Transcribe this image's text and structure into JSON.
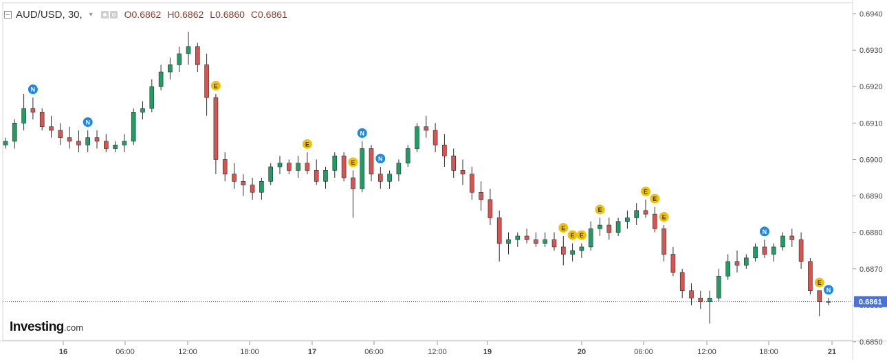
{
  "header": {
    "symbol": "AUD/USD, 30,",
    "open": "O0.6862",
    "high": "H0.6862",
    "low": "L0.6860",
    "close": "C0.6861"
  },
  "logo": {
    "brand": "Investing",
    "suffix": ".com"
  },
  "price_scale": [
    "0.6940",
    "0.6930",
    "0.6920",
    "0.6910",
    "0.6900",
    "0.6890",
    "0.6880",
    "0.6870",
    "0.6860",
    "0.6850"
  ],
  "time_axis": [
    {
      "label": "16",
      "bold": true
    },
    {
      "label": "06:00",
      "bold": false
    },
    {
      "label": "12:00",
      "bold": false
    },
    {
      "label": "18:00",
      "bold": false
    },
    {
      "label": "17",
      "bold": true
    },
    {
      "label": "06:00",
      "bold": false
    },
    {
      "label": "12:00",
      "bold": false
    },
    {
      "label": "19",
      "bold": true
    },
    {
      "label": "20",
      "bold": true
    },
    {
      "label": "06:00",
      "bold": false
    },
    {
      "label": "12:00",
      "bold": false
    },
    {
      "label": "18:00",
      "bold": false
    },
    {
      "label": "21",
      "bold": true
    }
  ],
  "last_price": "0.6861",
  "colors": {
    "up": "#1f9d63",
    "down": "#d9534f",
    "last_price_line": "#3f51b5",
    "last_price_tag": "#4a73d9",
    "event_e": "#f2c200",
    "event_n": "#1e88e5",
    "grid_axis": "#d6d6d6",
    "text": "#333333"
  },
  "events": [
    {
      "label": "N",
      "time": 3
    },
    {
      "label": "N",
      "time": 9
    },
    {
      "label": "E",
      "time": 23
    },
    {
      "label": "E",
      "time": 33
    },
    {
      "label": "E",
      "time": 38
    },
    {
      "label": "N",
      "time": 39
    },
    {
      "label": "N",
      "time": 41
    },
    {
      "label": "E",
      "time": 63
    },
    {
      "label": "E",
      "time": 61
    },
    {
      "label": "E",
      "time": 62
    },
    {
      "label": "E",
      "time": 65
    },
    {
      "label": "E",
      "time": 70
    },
    {
      "label": "E",
      "time": 71
    },
    {
      "label": "E",
      "time": 72
    },
    {
      "label": "N",
      "time": 83
    },
    {
      "label": "E",
      "time": 89
    },
    {
      "label": "N",
      "time": 90
    }
  ],
  "chart_data": {
    "type": "candlestick",
    "symbol": "AUD/USD",
    "interval": "30",
    "ylim": [
      0.6848,
      0.6942
    ],
    "grid": false,
    "candles": [
      [
        0.6904,
        0.6906,
        0.6903,
        0.6905
      ],
      [
        0.6905,
        0.6911,
        0.6903,
        0.691
      ],
      [
        0.691,
        0.6918,
        0.6908,
        0.6914
      ],
      [
        0.6914,
        0.6917,
        0.6911,
        0.6913
      ],
      [
        0.6913,
        0.6914,
        0.6908,
        0.6909
      ],
      [
        0.6909,
        0.6912,
        0.6906,
        0.6908
      ],
      [
        0.6908,
        0.691,
        0.6904,
        0.6906
      ],
      [
        0.6906,
        0.6909,
        0.6903,
        0.6905
      ],
      [
        0.6905,
        0.6908,
        0.6902,
        0.6904
      ],
      [
        0.6904,
        0.6908,
        0.6902,
        0.6906
      ],
      [
        0.6906,
        0.6908,
        0.6903,
        0.6905
      ],
      [
        0.6905,
        0.6907,
        0.6902,
        0.6903
      ],
      [
        0.6903,
        0.6905,
        0.6902,
        0.6904
      ],
      [
        0.6904,
        0.6907,
        0.6902,
        0.6905
      ],
      [
        0.6905,
        0.6914,
        0.6904,
        0.6913
      ],
      [
        0.6913,
        0.6916,
        0.6911,
        0.6914
      ],
      [
        0.6914,
        0.6922,
        0.6913,
        0.692
      ],
      [
        0.692,
        0.6926,
        0.6919,
        0.6924
      ],
      [
        0.6924,
        0.6928,
        0.6922,
        0.6926
      ],
      [
        0.6926,
        0.6931,
        0.6924,
        0.6929
      ],
      [
        0.6929,
        0.6935,
        0.6926,
        0.6931
      ],
      [
        0.6931,
        0.6932,
        0.6924,
        0.6926
      ],
      [
        0.6926,
        0.6929,
        0.6912,
        0.6917
      ],
      [
        0.6917,
        0.6918,
        0.6896,
        0.69
      ],
      [
        0.69,
        0.6902,
        0.6894,
        0.6896
      ],
      [
        0.6896,
        0.6899,
        0.6892,
        0.6894
      ],
      [
        0.6894,
        0.6896,
        0.689,
        0.6893
      ],
      [
        0.6893,
        0.6895,
        0.6889,
        0.6891
      ],
      [
        0.6891,
        0.6895,
        0.6889,
        0.6894
      ],
      [
        0.6894,
        0.6899,
        0.6893,
        0.6898
      ],
      [
        0.6898,
        0.6901,
        0.6896,
        0.6899
      ],
      [
        0.6899,
        0.69,
        0.6896,
        0.6897
      ],
      [
        0.6897,
        0.6901,
        0.6895,
        0.6899
      ],
      [
        0.6899,
        0.6902,
        0.6896,
        0.6897
      ],
      [
        0.6897,
        0.69,
        0.6893,
        0.6894
      ],
      [
        0.6894,
        0.6898,
        0.6892,
        0.6897
      ],
      [
        0.6897,
        0.6902,
        0.6895,
        0.6901
      ],
      [
        0.6901,
        0.6902,
        0.6894,
        0.6895
      ],
      [
        0.6895,
        0.6897,
        0.6884,
        0.6892
      ],
      [
        0.6892,
        0.6905,
        0.6891,
        0.6903
      ],
      [
        0.6903,
        0.6904,
        0.6894,
        0.6896
      ],
      [
        0.6896,
        0.6898,
        0.6892,
        0.6894
      ],
      [
        0.6894,
        0.6897,
        0.6892,
        0.6896
      ],
      [
        0.6896,
        0.69,
        0.6894,
        0.6899
      ],
      [
        0.6899,
        0.6904,
        0.6898,
        0.6903
      ],
      [
        0.6903,
        0.691,
        0.6902,
        0.6909
      ],
      [
        0.6909,
        0.6912,
        0.6906,
        0.6908
      ],
      [
        0.6908,
        0.691,
        0.6902,
        0.6904
      ],
      [
        0.6904,
        0.6907,
        0.6898,
        0.6901
      ],
      [
        0.6901,
        0.6903,
        0.6895,
        0.6897
      ],
      [
        0.6897,
        0.69,
        0.6893,
        0.6896
      ],
      [
        0.6896,
        0.6898,
        0.6889,
        0.6891
      ],
      [
        0.6891,
        0.6894,
        0.6886,
        0.6889
      ],
      [
        0.6889,
        0.6892,
        0.6882,
        0.6884
      ],
      [
        0.6884,
        0.6886,
        0.6872,
        0.6877
      ],
      [
        0.6877,
        0.688,
        0.6874,
        0.6878
      ],
      [
        0.6878,
        0.688,
        0.6876,
        0.6879
      ],
      [
        0.6879,
        0.6881,
        0.6877,
        0.6878
      ],
      [
        0.6878,
        0.688,
        0.6876,
        0.6877
      ],
      [
        0.6877,
        0.688,
        0.6876,
        0.6878
      ],
      [
        0.6878,
        0.688,
        0.6875,
        0.6876
      ],
      [
        0.6876,
        0.6879,
        0.6871,
        0.6874
      ],
      [
        0.6874,
        0.6877,
        0.6872,
        0.6875
      ],
      [
        0.6875,
        0.6877,
        0.6873,
        0.6876
      ],
      [
        0.6876,
        0.6883,
        0.6875,
        0.6881
      ],
      [
        0.6881,
        0.6884,
        0.6879,
        0.6882
      ],
      [
        0.6882,
        0.6884,
        0.6878,
        0.688
      ],
      [
        0.688,
        0.6884,
        0.6879,
        0.6883
      ],
      [
        0.6883,
        0.6886,
        0.6881,
        0.6884
      ],
      [
        0.6884,
        0.6888,
        0.6882,
        0.6886
      ],
      [
        0.6886,
        0.6889,
        0.6884,
        0.6885
      ],
      [
        0.6885,
        0.6887,
        0.688,
        0.6881
      ],
      [
        0.6881,
        0.6882,
        0.6872,
        0.6874
      ],
      [
        0.6874,
        0.6876,
        0.6868,
        0.6869
      ],
      [
        0.6869,
        0.687,
        0.6862,
        0.6864
      ],
      [
        0.6864,
        0.6866,
        0.686,
        0.6862
      ],
      [
        0.6862,
        0.6864,
        0.6859,
        0.6861
      ],
      [
        0.6861,
        0.6864,
        0.6855,
        0.6862
      ],
      [
        0.6862,
        0.687,
        0.6861,
        0.6868
      ],
      [
        0.6868,
        0.6874,
        0.6867,
        0.6872
      ],
      [
        0.6872,
        0.6875,
        0.6869,
        0.6871
      ],
      [
        0.6871,
        0.6874,
        0.687,
        0.6873
      ],
      [
        0.6873,
        0.6877,
        0.6872,
        0.6876
      ],
      [
        0.6876,
        0.6878,
        0.6873,
        0.6874
      ],
      [
        0.6874,
        0.6877,
        0.6872,
        0.6876
      ],
      [
        0.6876,
        0.688,
        0.6875,
        0.6879
      ],
      [
        0.6879,
        0.6881,
        0.6876,
        0.6878
      ],
      [
        0.6878,
        0.688,
        0.687,
        0.6872
      ],
      [
        0.6872,
        0.6873,
        0.6863,
        0.6864
      ],
      [
        0.6864,
        0.6864,
        0.6857,
        0.6861
      ],
      [
        0.6861,
        0.6862,
        0.686,
        0.6861
      ]
    ]
  }
}
